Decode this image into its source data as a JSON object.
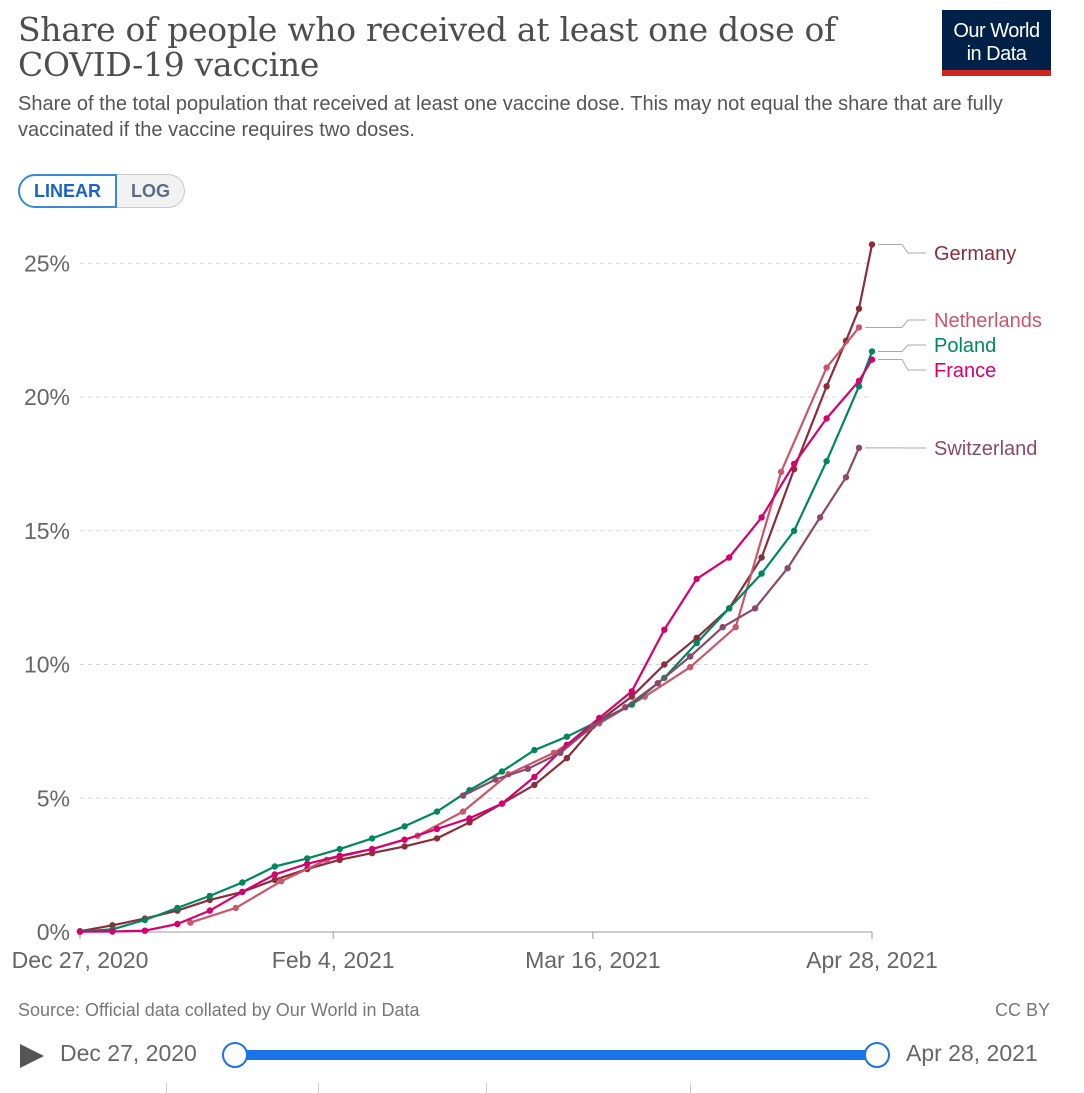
{
  "header": {
    "title": "Share of people who received at least one dose of COVID-19 vaccine",
    "subtitle": "Share of the total population that received at least one vaccine dose. This may not equal the share that are fully vaccinated if the vaccine requires two doses.",
    "logo_line1": "Our World",
    "logo_line2": "in Data"
  },
  "toggle": {
    "linear": "LINEAR",
    "log": "LOG",
    "selected": "LINEAR"
  },
  "footer": {
    "source": "Source: Official data collated by Our World in Data",
    "license": "CC BY"
  },
  "timeline": {
    "start": "Dec 27, 2020",
    "end": "Apr 28, 2021",
    "play_icon": "play-icon"
  },
  "colors": {
    "Germany": "#8c2d3a",
    "Netherlands": "#c9576a",
    "Poland": "#00875e",
    "France": "#d6006f",
    "Switzerland": "#8b4a6b",
    "grid": "#d5d5d5",
    "timeline": "#1a73e8"
  },
  "chart_data": {
    "type": "line",
    "title": "Share of people who received at least one dose of COVID-19 vaccine",
    "xlabel": "",
    "ylabel": "",
    "x_range": [
      "2020-12-27",
      "2021-04-28"
    ],
    "x_ticks": [
      {
        "date": "2020-12-27",
        "label": "Dec 27, 2020"
      },
      {
        "date": "2021-02-04",
        "label": "Feb 4, 2021"
      },
      {
        "date": "2021-03-16",
        "label": "Mar 16, 2021"
      },
      {
        "date": "2021-04-28",
        "label": "Apr 28, 2021"
      }
    ],
    "y_ticks": [
      {
        "value": 0,
        "label": "0%"
      },
      {
        "value": 5,
        "label": "5%"
      },
      {
        "value": 10,
        "label": "10%"
      },
      {
        "value": 15,
        "label": "15%"
      },
      {
        "value": 20,
        "label": "20%"
      },
      {
        "value": 25,
        "label": "25%"
      }
    ],
    "ylim": [
      0,
      26
    ],
    "grid": "horizontal-dashed",
    "legend": "right-end labels",
    "series": [
      {
        "name": "Germany",
        "points": [
          [
            "2020-12-27",
            0.03
          ],
          [
            "2021-01-01",
            0.25
          ],
          [
            "2021-01-06",
            0.5
          ],
          [
            "2021-01-11",
            0.8
          ],
          [
            "2021-01-16",
            1.2
          ],
          [
            "2021-01-21",
            1.5
          ],
          [
            "2021-01-26",
            1.95
          ],
          [
            "2021-01-31",
            2.35
          ],
          [
            "2021-02-05",
            2.7
          ],
          [
            "2021-02-10",
            2.95
          ],
          [
            "2021-02-15",
            3.2
          ],
          [
            "2021-02-20",
            3.5
          ],
          [
            "2021-02-25",
            4.1
          ],
          [
            "2021-03-02",
            4.8
          ],
          [
            "2021-03-07",
            5.5
          ],
          [
            "2021-03-12",
            6.5
          ],
          [
            "2021-03-17",
            7.9
          ],
          [
            "2021-03-22",
            8.8
          ],
          [
            "2021-03-27",
            10.0
          ],
          [
            "2021-04-01",
            11.0
          ],
          [
            "2021-04-06",
            12.1
          ],
          [
            "2021-04-11",
            14.0
          ],
          [
            "2021-04-16",
            17.3
          ],
          [
            "2021-04-21",
            20.4
          ],
          [
            "2021-04-24",
            22.1
          ],
          [
            "2021-04-26",
            23.3
          ],
          [
            "2021-04-28",
            25.7
          ]
        ]
      },
      {
        "name": "Netherlands",
        "points": [
          [
            "2021-01-13",
            0.35
          ],
          [
            "2021-01-20",
            0.9
          ],
          [
            "2021-01-27",
            1.9
          ],
          [
            "2021-02-03",
            2.7
          ],
          [
            "2021-02-10",
            3.1
          ],
          [
            "2021-02-17",
            3.6
          ],
          [
            "2021-02-24",
            4.5
          ],
          [
            "2021-03-03",
            5.9
          ],
          [
            "2021-03-10",
            6.7
          ],
          [
            "2021-03-17",
            7.8
          ],
          [
            "2021-03-24",
            8.8
          ],
          [
            "2021-03-31",
            9.9
          ],
          [
            "2021-04-07",
            11.4
          ],
          [
            "2021-04-14",
            17.2
          ],
          [
            "2021-04-21",
            21.1
          ],
          [
            "2021-04-26",
            22.6
          ]
        ]
      },
      {
        "name": "Poland",
        "points": [
          [
            "2020-12-27",
            0.02
          ],
          [
            "2021-01-01",
            0.1
          ],
          [
            "2021-01-06",
            0.45
          ],
          [
            "2021-01-11",
            0.9
          ],
          [
            "2021-01-16",
            1.35
          ],
          [
            "2021-01-21",
            1.85
          ],
          [
            "2021-01-26",
            2.45
          ],
          [
            "2021-01-31",
            2.75
          ],
          [
            "2021-02-05",
            3.1
          ],
          [
            "2021-02-10",
            3.5
          ],
          [
            "2021-02-15",
            3.95
          ],
          [
            "2021-02-20",
            4.5
          ],
          [
            "2021-02-25",
            5.3
          ],
          [
            "2021-03-02",
            6.0
          ],
          [
            "2021-03-07",
            6.8
          ],
          [
            "2021-03-12",
            7.3
          ],
          [
            "2021-03-17",
            7.9
          ],
          [
            "2021-03-22",
            8.5
          ],
          [
            "2021-03-27",
            9.5
          ],
          [
            "2021-04-01",
            10.8
          ],
          [
            "2021-04-06",
            12.1
          ],
          [
            "2021-04-11",
            13.4
          ],
          [
            "2021-04-16",
            15.0
          ],
          [
            "2021-04-21",
            17.6
          ],
          [
            "2021-04-26",
            20.4
          ],
          [
            "2021-04-28",
            21.7
          ]
        ]
      },
      {
        "name": "France",
        "points": [
          [
            "2020-12-27",
            0.01
          ],
          [
            "2021-01-01",
            0.02
          ],
          [
            "2021-01-06",
            0.05
          ],
          [
            "2021-01-11",
            0.3
          ],
          [
            "2021-01-16",
            0.8
          ],
          [
            "2021-01-21",
            1.5
          ],
          [
            "2021-01-26",
            2.15
          ],
          [
            "2021-01-31",
            2.55
          ],
          [
            "2021-02-05",
            2.85
          ],
          [
            "2021-02-10",
            3.1
          ],
          [
            "2021-02-15",
            3.45
          ],
          [
            "2021-02-20",
            3.85
          ],
          [
            "2021-02-25",
            4.25
          ],
          [
            "2021-03-02",
            4.8
          ],
          [
            "2021-03-07",
            5.8
          ],
          [
            "2021-03-12",
            7.0
          ],
          [
            "2021-03-17",
            8.0
          ],
          [
            "2021-03-22",
            9.0
          ],
          [
            "2021-03-27",
            11.3
          ],
          [
            "2021-04-01",
            13.2
          ],
          [
            "2021-04-06",
            14.0
          ],
          [
            "2021-04-11",
            15.5
          ],
          [
            "2021-04-16",
            17.5
          ],
          [
            "2021-04-21",
            19.2
          ],
          [
            "2021-04-26",
            20.6
          ],
          [
            "2021-04-28",
            21.4
          ]
        ]
      },
      {
        "name": "Switzerland",
        "points": [
          [
            "2021-02-24",
            5.1
          ],
          [
            "2021-03-01",
            5.7
          ],
          [
            "2021-03-06",
            6.1
          ],
          [
            "2021-03-11",
            6.7
          ],
          [
            "2021-03-16",
            7.7
          ],
          [
            "2021-03-21",
            8.4
          ],
          [
            "2021-03-26",
            9.3
          ],
          [
            "2021-03-31",
            10.3
          ],
          [
            "2021-04-05",
            11.4
          ],
          [
            "2021-04-10",
            12.1
          ],
          [
            "2021-04-15",
            13.6
          ],
          [
            "2021-04-20",
            15.5
          ],
          [
            "2021-04-24",
            17.0
          ],
          [
            "2021-04-26",
            18.1
          ]
        ]
      }
    ]
  }
}
